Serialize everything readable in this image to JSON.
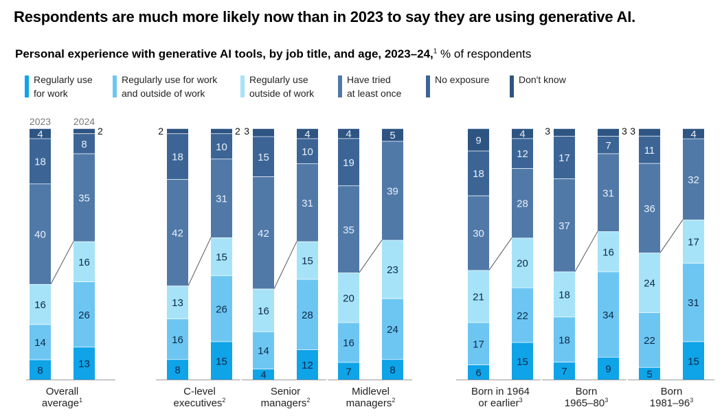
{
  "headline": "Respondents are much more likely now than in 2023 to say they are using generative AI.",
  "subtitle": {
    "bold": "Personal experience with generative AI tools, by job title, and age, 2023–24,",
    "footnote": "1",
    "rest": " % of respondents"
  },
  "legend": [
    {
      "line1": "Regularly use",
      "line2": "for work",
      "color": "#0fa3e8"
    },
    {
      "line1": "Regularly use for work",
      "line2": "and outside of work",
      "color": "#6dc6f2"
    },
    {
      "line1": "Regularly use",
      "line2": "outside of work",
      "color": "#a6e3f8"
    },
    {
      "line1": "Have tried",
      "line2": "at least once",
      "color": "#5079a8"
    },
    {
      "line1": "No exposure",
      "line2": "",
      "color": "#3c6596"
    },
    {
      "line1": "Don't know",
      "line2": "",
      "color": "#2e5482"
    }
  ],
  "year_labels": [
    "2023",
    "2024"
  ],
  "chart_data": {
    "type": "bar",
    "stacked": true,
    "title": "Personal experience with generative AI tools, by job title, and age, 2023–24",
    "ylabel": "% of respondents",
    "ylim": [
      0,
      100
    ],
    "series_names": [
      "Regularly use for work",
      "Regularly use for work and outside of work",
      "Regularly use outside of work",
      "Have tried at least once",
      "No exposure",
      "Don't know"
    ],
    "groups": [
      {
        "label1": "Overall",
        "label2": "average",
        "sup": "1",
        "bars": [
          {
            "year": "2023",
            "values": [
              8,
              14,
              16,
              40,
              18,
              4
            ]
          },
          {
            "year": "2024",
            "values": [
              13,
              26,
              16,
              35,
              8,
              2
            ]
          }
        ]
      },
      {
        "label1": "C-level",
        "label2": "executives",
        "sup": "2",
        "bars": [
          {
            "year": "2023",
            "values": [
              8,
              16,
              13,
              42,
              18,
              2
            ]
          },
          {
            "year": "2024",
            "values": [
              15,
              26,
              15,
              31,
              10,
              2
            ]
          }
        ]
      },
      {
        "label1": "Senior",
        "label2": "managers",
        "sup": "2",
        "bars": [
          {
            "year": "2023",
            "values": [
              4,
              14,
              16,
              42,
              15,
              3
            ]
          },
          {
            "year": "2024",
            "values": [
              12,
              28,
              15,
              31,
              10,
              4
            ]
          }
        ]
      },
      {
        "label1": "Midlevel",
        "label2": "managers",
        "sup": "2",
        "bars": [
          {
            "year": "2023",
            "values": [
              7,
              16,
              20,
              35,
              19,
              4
            ]
          },
          {
            "year": "2024",
            "values": [
              8,
              24,
              23,
              39,
              0,
              5
            ]
          }
        ]
      },
      {
        "label1": "Born in 1964",
        "label2": "or earlier",
        "sup": "3",
        "bars": [
          {
            "year": "2023",
            "values": [
              6,
              17,
              21,
              30,
              18,
              9
            ]
          },
          {
            "year": "2024",
            "values": [
              15,
              22,
              20,
              28,
              12,
              4
            ]
          }
        ]
      },
      {
        "label1": "Born",
        "label2": "1965–80",
        "sup": "3",
        "bars": [
          {
            "year": "2023",
            "values": [
              7,
              18,
              18,
              37,
              17,
              3
            ]
          },
          {
            "year": "2024",
            "values": [
              9,
              34,
              16,
              31,
              7,
              3
            ]
          }
        ]
      },
      {
        "label1": "Born",
        "label2": "1981–96",
        "sup": "3",
        "bars": [
          {
            "year": "2023",
            "values": [
              5,
              22,
              24,
              36,
              11,
              3
            ]
          },
          {
            "year": "2024",
            "values": [
              15,
              31,
              17,
              32,
              0,
              4
            ]
          }
        ]
      }
    ]
  }
}
